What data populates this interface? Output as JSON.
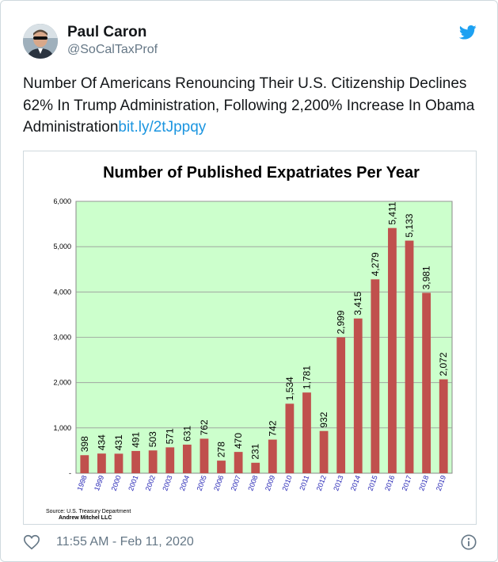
{
  "tweet": {
    "author_name": "Paul Caron",
    "author_handle": "@SoCalTaxProf",
    "text": "Number Of Americans Renouncing Their U.S. Citizenship Declines 62% In Trump Administration, Following 2,200% Increase In Obama Administration",
    "link_text": "bit.ly/2tJppqy",
    "timestamp": "11:55 AM - Feb 11, 2020"
  },
  "icons": {
    "brand": "twitter-bird-icon",
    "like": "heart-icon",
    "info": "info-icon"
  },
  "colors": {
    "link": "#1b95e0",
    "brand": "#1da1f2",
    "bar": "#c0504d",
    "plot_bg": "#ccffcc",
    "tick_year": "#1f1fb3"
  },
  "chart_data": {
    "type": "bar",
    "title": "Number of Published Expatriates Per Year",
    "xlabel": "",
    "ylabel": "",
    "categories": [
      "1998",
      "1999",
      "2000",
      "2001",
      "2002",
      "2003",
      "2004",
      "2005",
      "2006",
      "2007",
      "2008",
      "2009",
      "2010",
      "2011",
      "2012",
      "2013",
      "2014",
      "2015",
      "2016",
      "2017",
      "2018",
      "2019"
    ],
    "values": [
      398,
      434,
      431,
      491,
      503,
      571,
      631,
      762,
      278,
      470,
      231,
      742,
      1534,
      1781,
      932,
      2999,
      3415,
      4279,
      5411,
      5133,
      3981,
      2072
    ],
    "value_labels": [
      "398",
      "434",
      "431",
      "491",
      "503",
      "571",
      "631",
      "762",
      "278",
      "470",
      "231",
      "742",
      "1,534",
      "1,781",
      "932",
      "2,999",
      "3,415",
      "4,279",
      "5,411",
      "5,133",
      "3,981",
      "2,072"
    ],
    "ylim": [
      0,
      6000
    ],
    "yticks": [
      0,
      1000,
      2000,
      3000,
      4000,
      5000,
      6000
    ],
    "ytick_labels": [
      "-",
      "1,000",
      "2,000",
      "3,000",
      "4,000",
      "5,000",
      "6,000"
    ],
    "grid": true,
    "legend": "none",
    "source_line": "Source: U.S. Treasury Department",
    "credit_line": "Andrew Mitchel LLC"
  }
}
